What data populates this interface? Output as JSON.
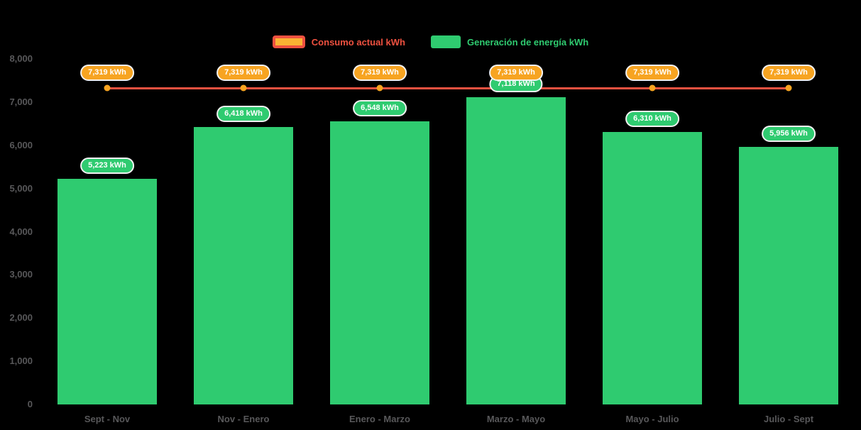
{
  "colors": {
    "background": "#000000",
    "bar": "#2fcb70",
    "line": "#ef5140",
    "marker": "#f7a421",
    "consumption_badge": "#f7a421",
    "generation_badge": "#2fcb70",
    "axis_text": "#58585a",
    "legend_consumption_text": "#ef5140",
    "legend_generation_text": "#2fcb70",
    "consumption_swatch_fill": "#f9b233",
    "consumption_swatch_border": "#ef5140",
    "badge_border": "#f2f2f2"
  },
  "legend": {
    "consumption_label": "Consumo actual kWh",
    "generation_label": "Generación de energía kWh"
  },
  "chart_data": {
    "type": "bar",
    "title": "",
    "xlabel": "",
    "ylabel": "",
    "categories": [
      "Sept - Nov",
      "Nov - Enero",
      "Enero - Marzo",
      "Marzo - Mayo",
      "Mayo - Julio",
      "Julio - Sept"
    ],
    "series": [
      {
        "name": "Generación de energía kWh",
        "type": "bar",
        "color": "#2fcb70",
        "values": [
          5223,
          6418,
          6548,
          7118,
          6310,
          5956
        ],
        "labels": [
          "5,223 kWh",
          "6,418 kWh",
          "6,548 kWh",
          "7,118 kWh",
          "6,310 kWh",
          "5,956 kWh"
        ]
      },
      {
        "name": "Consumo actual kWh",
        "type": "line",
        "color": "#ef5140",
        "marker_color": "#f7a421",
        "values": [
          7319,
          7319,
          7319,
          7319,
          7319,
          7319
        ],
        "labels": [
          "7,319 kWh",
          "7,319 kWh",
          "7,319 kWh",
          "7,319 kWh",
          "7,319 kWh",
          "7,319 kWh"
        ]
      }
    ],
    "ylim": [
      0,
      8000
    ],
    "yticks": [
      0,
      1000,
      2000,
      3000,
      4000,
      5000,
      6000,
      7000,
      8000
    ],
    "ytick_labels": [
      "0",
      "1,000",
      "2,000",
      "3,000",
      "4,000",
      "5,000",
      "6,000",
      "7,000",
      "8,000"
    ],
    "grid": false,
    "legend_position": "top"
  }
}
